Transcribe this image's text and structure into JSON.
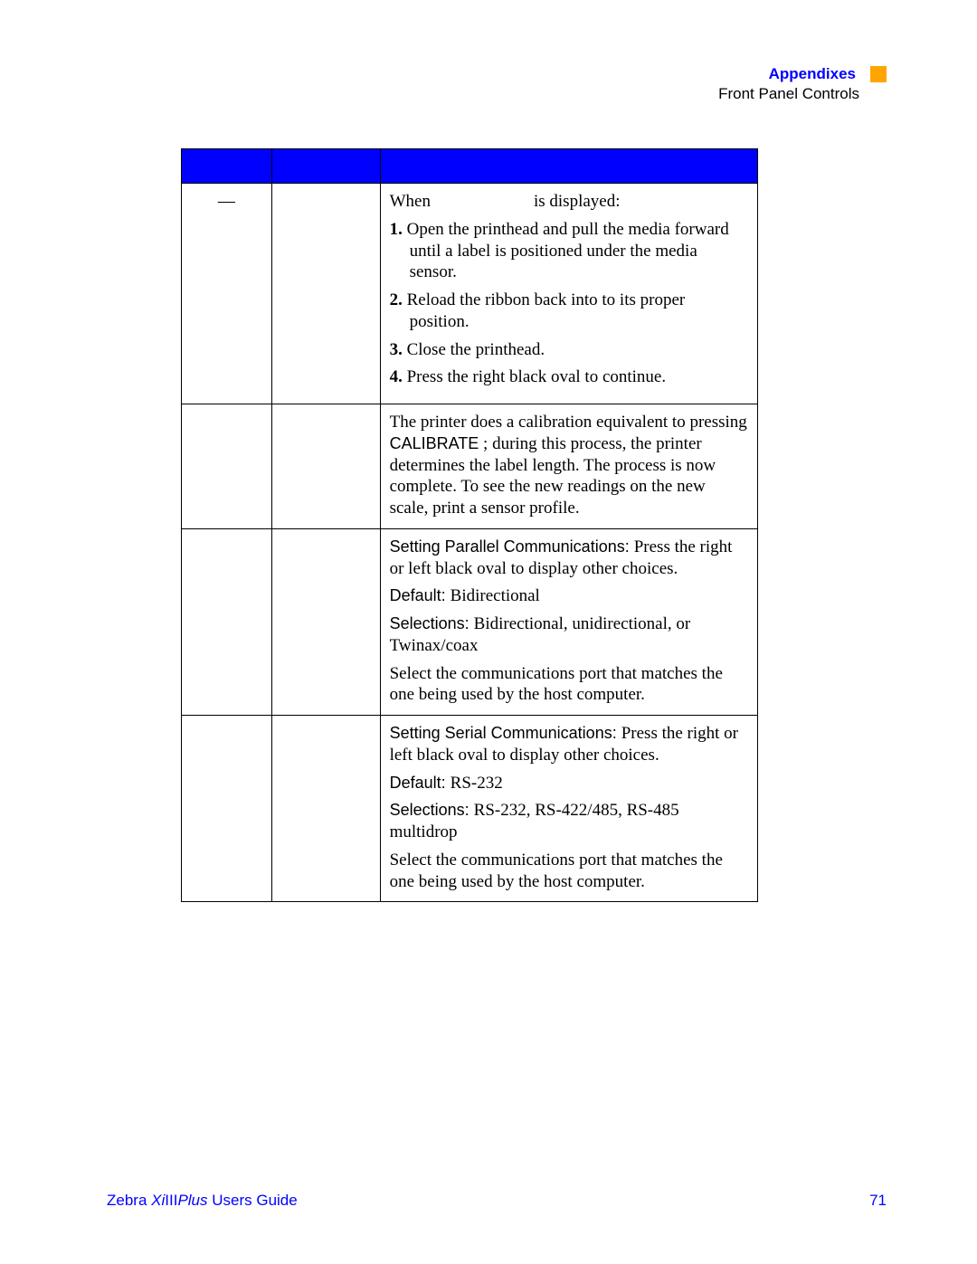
{
  "header": {
    "title": "Appendixes",
    "subtitle": "Front Panel Controls"
  },
  "row1": {
    "dash": "—",
    "when_pre": "When ",
    "when_post": " is displayed:",
    "step1num": "1.",
    "step1": " Open the printhead and pull the media forward until a label is positioned under the media sensor.",
    "step2num": "2.",
    "step2": " Reload the ribbon back into to its proper position.",
    "step3num": "3.",
    "step3": " Close the printhead.",
    "step4num": "4.",
    "step4": " Press the right black oval to continue."
  },
  "row2": {
    "pre": "The printer does a calibration equivalent to pressing ",
    "calibrate": "CALIBRATE",
    "post": " ; during this process, the printer determines the label length. The process is now complete. To see the new readings on the new scale, print a sensor profile."
  },
  "row3": {
    "h1": "Setting Parallel Communications: ",
    "h1t": "Press the right or left black oval to display other choices.",
    "def_l": "Default: ",
    "def_v": "Bidirectional",
    "sel_l": "Selections: ",
    "sel_v": "Bidirectional, unidirectional, or Twinax/coax",
    "foot": "Select the communications port that matches the one being used by the host computer."
  },
  "row4": {
    "h1": "Setting Serial Communications: ",
    "h1t": "Press the right or left black oval to display other choices.",
    "def_l": "Default: ",
    "def_v": " RS-232",
    "sel_l": "Selections: ",
    "sel_v": "RS-232, RS-422/485, RS-485 multidrop",
    "foot": "Select the communications port that matches the one being used by the host computer."
  },
  "footer": {
    "brand_pre": "Zebra ",
    "brand_ital1": "Xi",
    "brand_mid": "III",
    "brand_ital2": "Plus",
    "brand_post": " Users Guide",
    "page": "71"
  },
  "colors": {
    "blue": "#0000ff",
    "orange": "#ffa500",
    "black": "#000000",
    "white": "#ffffff"
  }
}
